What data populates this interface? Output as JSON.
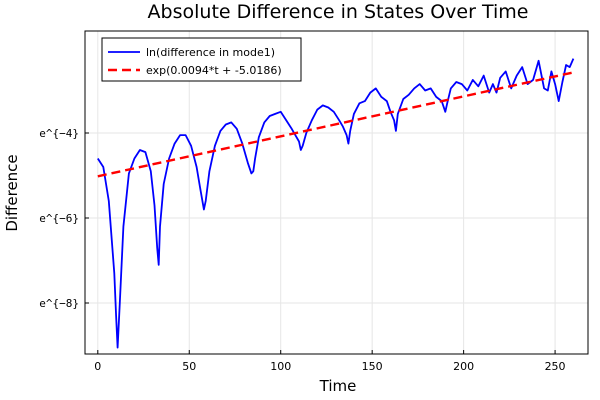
{
  "chart_data": {
    "type": "line",
    "title": "Absolute Difference in States Over Time",
    "xlabel": "Time",
    "ylabel": "Difference",
    "xlim": [
      -7,
      268
    ],
    "ylim": [
      -9.2,
      -1.6
    ],
    "grid": true,
    "legend_position": "top-left",
    "x_ticks": [
      0,
      50,
      100,
      150,
      200,
      250
    ],
    "x_tick_labels": [
      "0",
      "50",
      "100",
      "150",
      "200",
      "250"
    ],
    "y_ticks": [
      -8,
      -6,
      -4
    ],
    "y_tick_labels": [
      "e^{−8}",
      "e^{−6}",
      "e^{−4}"
    ],
    "series": [
      {
        "name": "ln(difference in mode1)",
        "color": "#0000ff",
        "style": "solid",
        "x": [
          0,
          3,
          6,
          9,
          10,
          10.8,
          12,
          14,
          17,
          20,
          23,
          26,
          29,
          31,
          32.5,
          33.3,
          34,
          36,
          39,
          42,
          45,
          48,
          51,
          54,
          56,
          58,
          59,
          61,
          64,
          67,
          70,
          73,
          76,
          79,
          82,
          84,
          85,
          86,
          88,
          91,
          94,
          97,
          100,
          103,
          106,
          108,
          110,
          111,
          112,
          114,
          117,
          120,
          123,
          126,
          129,
          132,
          134,
          136,
          137,
          138,
          140,
          143,
          146,
          149,
          152,
          155,
          158,
          160,
          162,
          163,
          164,
          167,
          170,
          173,
          176,
          179,
          182,
          185,
          188,
          190,
          191,
          193,
          196,
          199,
          202,
          205,
          208,
          211,
          214,
          216,
          218,
          220,
          223,
          226,
          229,
          232,
          235,
          238,
          241,
          244,
          246,
          248,
          250,
          252,
          254,
          256,
          258,
          260
        ],
        "y": [
          -4.6,
          -4.8,
          -5.6,
          -7.3,
          -8.3,
          -9.05,
          -8.0,
          -6.2,
          -4.95,
          -4.6,
          -4.4,
          -4.45,
          -4.9,
          -5.7,
          -6.7,
          -7.1,
          -6.2,
          -5.2,
          -4.6,
          -4.25,
          -4.05,
          -4.05,
          -4.3,
          -4.8,
          -5.3,
          -5.8,
          -5.6,
          -4.9,
          -4.3,
          -3.95,
          -3.8,
          -3.75,
          -3.9,
          -4.25,
          -4.7,
          -4.95,
          -4.9,
          -4.6,
          -4.1,
          -3.75,
          -3.6,
          -3.55,
          -3.5,
          -3.7,
          -3.9,
          -4.05,
          -4.2,
          -4.4,
          -4.3,
          -4.0,
          -3.7,
          -3.45,
          -3.35,
          -3.4,
          -3.5,
          -3.7,
          -3.85,
          -4.05,
          -4.25,
          -3.95,
          -3.55,
          -3.3,
          -3.25,
          -3.05,
          -2.95,
          -3.15,
          -3.25,
          -3.5,
          -3.7,
          -3.95,
          -3.55,
          -3.2,
          -3.1,
          -2.95,
          -2.85,
          -3.0,
          -2.95,
          -3.15,
          -3.25,
          -3.5,
          -3.3,
          -2.95,
          -2.8,
          -2.85,
          -3.0,
          -2.75,
          -2.9,
          -2.65,
          -3.05,
          -2.85,
          -3.05,
          -2.7,
          -2.55,
          -2.95,
          -2.65,
          -2.45,
          -2.85,
          -2.75,
          -2.3,
          -2.95,
          -3.0,
          -2.55,
          -2.85,
          -3.25,
          -2.8,
          -2.4,
          -2.45,
          -2.25
        ],
        "note_line_width": 2
      },
      {
        "name": "exp(0.0094*t + -5.0186)",
        "color": "#ff0000",
        "style": "dashed",
        "x": [
          0,
          260
        ],
        "y": [
          -5.0186,
          -2.5746
        ]
      }
    ]
  }
}
